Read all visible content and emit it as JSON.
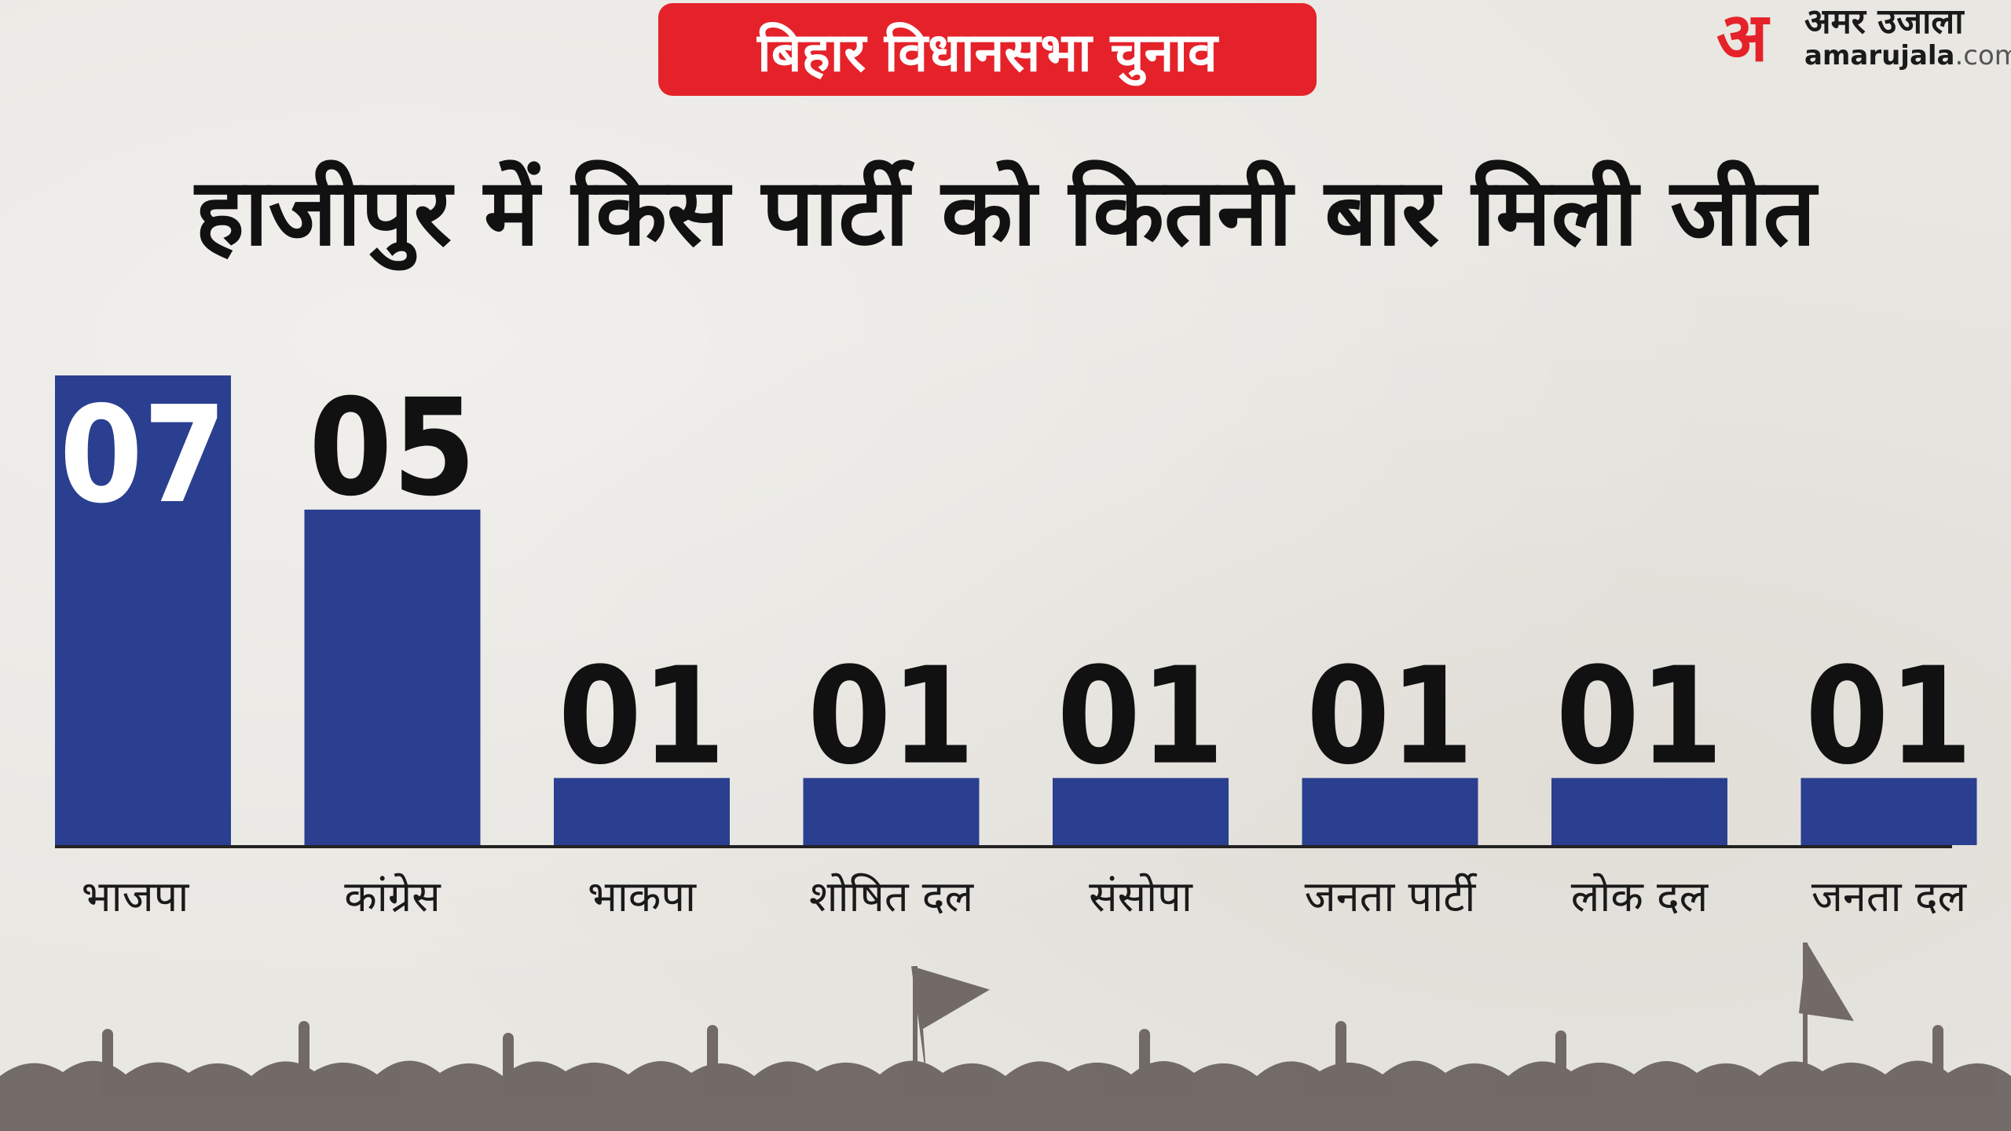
{
  "header": {
    "badge": "बिहार विधानसभा चुनाव",
    "logo_hindi": "अमर उजाला",
    "logo_mark": "अ",
    "logo_domain_name": "amarujala",
    "logo_domain_tld": ".com"
  },
  "chart_data": {
    "type": "bar",
    "title": "हाजीपुर में किस पार्टी को कितनी बार मिली जीत",
    "categories": [
      "भाजपा",
      "कांग्रेस",
      "भाकपा",
      "शोषित दल",
      "संसोपा",
      "जनता पार्टी",
      "लोक दल",
      "जनता दल"
    ],
    "values": [
      7,
      5,
      1,
      1,
      1,
      1,
      1,
      1
    ],
    "data_labels": [
      "07",
      "05",
      "01",
      "01",
      "01",
      "01",
      "01",
      "01"
    ],
    "xlabel": "",
    "ylabel": "",
    "ylim": [
      0,
      7
    ],
    "grid": false,
    "bar_color": "#2a3f8f",
    "label_color": "#111111",
    "inside_label_color": "#ffffff"
  }
}
